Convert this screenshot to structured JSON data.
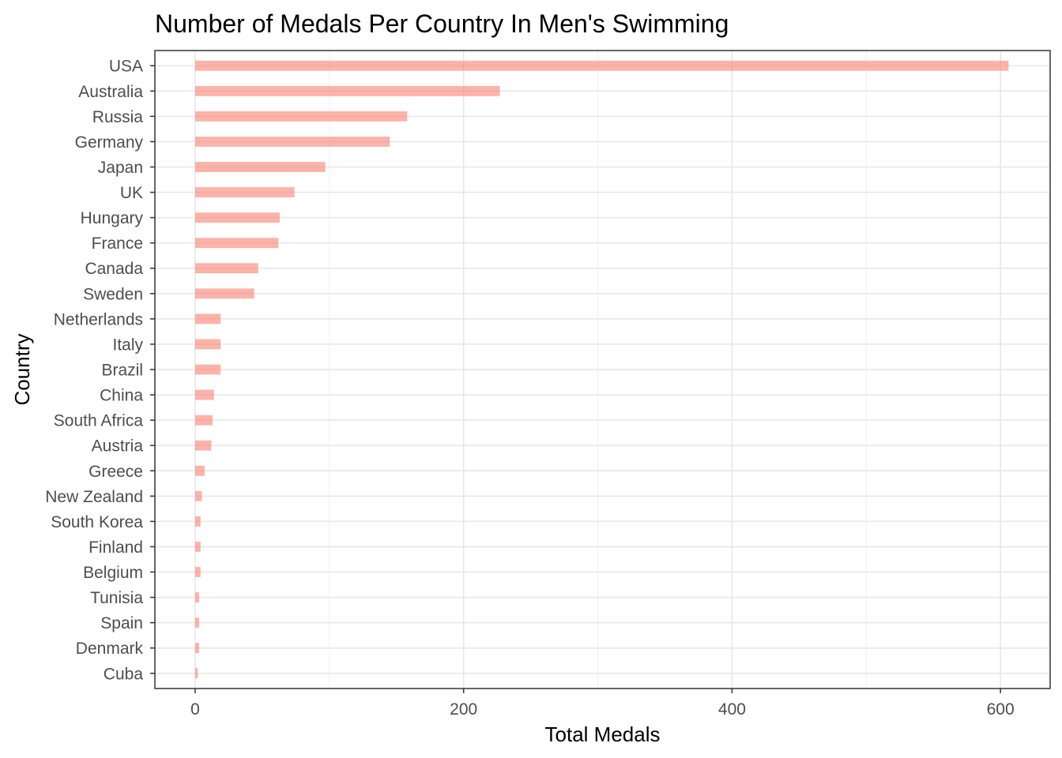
{
  "chart_data": {
    "type": "bar",
    "orientation": "horizontal",
    "title": "Number of Medals Per Country In Men's Swimming",
    "xlabel": "Total Medals",
    "ylabel": "Country",
    "xlim": [
      -30,
      637
    ],
    "xticks": [
      0,
      200,
      400,
      600
    ],
    "grid": true,
    "bar_color": "#fa8072",
    "bar_opacity": 0.6,
    "categories": [
      "USA",
      "Australia",
      "Russia",
      "Germany",
      "Japan",
      "UK",
      "Hungary",
      "France",
      "Canada",
      "Sweden",
      "Netherlands",
      "Italy",
      "Brazil",
      "China",
      "South Africa",
      "Austria",
      "Greece",
      "New Zealand",
      "South Korea",
      "Finland",
      "Belgium",
      "Tunisia",
      "Spain",
      "Denmark",
      "Cuba"
    ],
    "values": [
      606,
      227,
      158,
      145,
      97,
      74,
      63,
      62,
      47,
      44,
      19,
      19,
      19,
      14,
      13,
      12,
      7,
      5,
      4,
      4,
      4,
      3,
      3,
      3,
      2
    ]
  }
}
